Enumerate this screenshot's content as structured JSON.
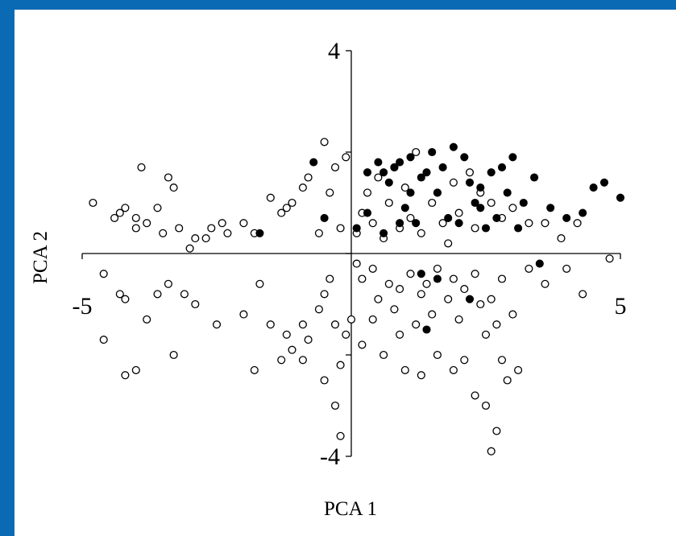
{
  "chart_data": {
    "type": "scatter",
    "title": "",
    "xlabel": "PCA 1",
    "ylabel": "PCA 2",
    "xlim": [
      -5,
      5
    ],
    "ylim": [
      -4,
      4
    ],
    "x_tick_labels": [
      "-5",
      "5"
    ],
    "y_tick_labels": [
      "4",
      "-4"
    ],
    "grid": false,
    "legend": "none",
    "colors": {
      "background": "#0a6ab4",
      "panel": "#ffffff",
      "ink": "#000000"
    },
    "series": [
      {
        "marker": "open-circle",
        "points": [
          [
            -4.8,
            1.0
          ],
          [
            -4.4,
            0.7
          ],
          [
            -4.3,
            0.8
          ],
          [
            -4.2,
            0.9
          ],
          [
            -4.0,
            0.7
          ],
          [
            -3.9,
            1.7
          ],
          [
            -4.0,
            0.5
          ],
          [
            -3.8,
            0.6
          ],
          [
            -3.6,
            0.9
          ],
          [
            -3.4,
            1.5
          ],
          [
            -3.3,
            1.3
          ],
          [
            -3.5,
            0.4
          ],
          [
            -3.2,
            0.5
          ],
          [
            -3.0,
            0.1
          ],
          [
            -2.9,
            0.3
          ],
          [
            -2.7,
            0.3
          ],
          [
            -2.6,
            0.5
          ],
          [
            -2.4,
            0.6
          ],
          [
            -2.3,
            0.4
          ],
          [
            -4.6,
            -0.4
          ],
          [
            -4.3,
            -0.8
          ],
          [
            -4.2,
            -0.9
          ],
          [
            -3.8,
            -1.3
          ],
          [
            -3.6,
            -0.8
          ],
          [
            -3.4,
            -0.6
          ],
          [
            -3.1,
            -0.8
          ],
          [
            -2.9,
            -1.0
          ],
          [
            -4.6,
            -1.7
          ],
          [
            -4.2,
            -2.4
          ],
          [
            -4.0,
            -2.3
          ],
          [
            -3.3,
            -2.0
          ],
          [
            -2.0,
            0.6
          ],
          [
            -1.8,
            0.4
          ],
          [
            -1.5,
            1.1
          ],
          [
            -1.3,
            0.8
          ],
          [
            -1.2,
            0.9
          ],
          [
            -1.1,
            1.0
          ],
          [
            -0.9,
            1.3
          ],
          [
            -0.8,
            1.5
          ],
          [
            -0.6,
            0.4
          ],
          [
            -0.5,
            2.2
          ],
          [
            -0.4,
            1.2
          ],
          [
            -0.3,
            1.7
          ],
          [
            -0.2,
            0.5
          ],
          [
            -0.1,
            1.9
          ],
          [
            -2.5,
            -1.4
          ],
          [
            -2.0,
            -1.2
          ],
          [
            -1.7,
            -0.6
          ],
          [
            -1.5,
            -1.4
          ],
          [
            -1.2,
            -1.6
          ],
          [
            -1.1,
            -1.9
          ],
          [
            -0.9,
            -1.4
          ],
          [
            -0.8,
            -1.7
          ],
          [
            -0.6,
            -1.1
          ],
          [
            -0.5,
            -0.8
          ],
          [
            -0.4,
            -0.5
          ],
          [
            -0.3,
            -1.4
          ],
          [
            -0.2,
            -2.2
          ],
          [
            -0.1,
            -1.6
          ],
          [
            0.0,
            -1.3
          ],
          [
            -1.8,
            -2.3
          ],
          [
            -1.3,
            -2.1
          ],
          [
            -0.9,
            -2.1
          ],
          [
            -0.5,
            -2.5
          ],
          [
            -0.3,
            -3.0
          ],
          [
            -0.2,
            -3.6
          ],
          [
            0.1,
            0.4
          ],
          [
            0.2,
            0.8
          ],
          [
            0.3,
            1.2
          ],
          [
            0.4,
            0.6
          ],
          [
            0.5,
            1.5
          ],
          [
            0.6,
            0.3
          ],
          [
            0.7,
            1.0
          ],
          [
            0.8,
            1.7
          ],
          [
            0.9,
            0.5
          ],
          [
            1.0,
            1.3
          ],
          [
            1.1,
            0.7
          ],
          [
            1.2,
            2.0
          ],
          [
            1.3,
            0.4
          ],
          [
            1.5,
            1.0
          ],
          [
            1.6,
            1.2
          ],
          [
            1.7,
            0.6
          ],
          [
            1.8,
            0.2
          ],
          [
            1.9,
            1.4
          ],
          [
            2.0,
            0.8
          ],
          [
            2.2,
            1.6
          ],
          [
            2.3,
            0.5
          ],
          [
            2.4,
            1.2
          ],
          [
            2.6,
            1.0
          ],
          [
            2.8,
            0.7
          ],
          [
            3.0,
            0.9
          ],
          [
            3.3,
            0.6
          ],
          [
            3.6,
            0.6
          ],
          [
            3.9,
            0.3
          ],
          [
            4.2,
            0.6
          ],
          [
            4.8,
            -0.1
          ],
          [
            0.1,
            -0.2
          ],
          [
            0.2,
            -0.5
          ],
          [
            0.4,
            -0.3
          ],
          [
            0.5,
            -0.9
          ],
          [
            0.7,
            -0.6
          ],
          [
            0.8,
            -1.1
          ],
          [
            0.9,
            -0.7
          ],
          [
            1.1,
            -0.4
          ],
          [
            1.2,
            -1.4
          ],
          [
            1.3,
            -0.8
          ],
          [
            1.4,
            -0.6
          ],
          [
            1.5,
            -1.2
          ],
          [
            1.6,
            -0.3
          ],
          [
            1.8,
            -0.9
          ],
          [
            1.9,
            -0.5
          ],
          [
            2.0,
            -1.3
          ],
          [
            2.1,
            -0.7
          ],
          [
            2.3,
            -0.4
          ],
          [
            2.4,
            -1.0
          ],
          [
            2.5,
            -1.6
          ],
          [
            2.6,
            -0.9
          ],
          [
            2.7,
            -1.4
          ],
          [
            2.8,
            -0.5
          ],
          [
            3.0,
            -1.2
          ],
          [
            3.3,
            -0.3
          ],
          [
            3.6,
            -0.6
          ],
          [
            4.0,
            -0.3
          ],
          [
            4.3,
            -0.8
          ],
          [
            0.2,
            -1.8
          ],
          [
            0.4,
            -1.3
          ],
          [
            0.6,
            -2.0
          ],
          [
            0.9,
            -1.6
          ],
          [
            1.0,
            -2.3
          ],
          [
            1.3,
            -2.4
          ],
          [
            1.6,
            -2.0
          ],
          [
            1.9,
            -2.3
          ],
          [
            2.1,
            -2.1
          ],
          [
            2.3,
            -2.8
          ],
          [
            2.5,
            -3.0
          ],
          [
            2.7,
            -3.5
          ],
          [
            2.9,
            -2.5
          ],
          [
            3.1,
            -2.3
          ],
          [
            2.6,
            -3.9
          ],
          [
            2.8,
            -2.1
          ]
        ]
      },
      {
        "marker": "filled-circle",
        "points": [
          [
            -1.7,
            0.4
          ],
          [
            -0.7,
            1.8
          ],
          [
            -0.5,
            0.7
          ],
          [
            0.1,
            0.5
          ],
          [
            0.3,
            0.8
          ],
          [
            0.5,
            1.8
          ],
          [
            0.6,
            1.6
          ],
          [
            0.7,
            1.4
          ],
          [
            0.8,
            1.7
          ],
          [
            0.9,
            1.8
          ],
          [
            1.0,
            0.9
          ],
          [
            1.1,
            1.2
          ],
          [
            1.2,
            0.6
          ],
          [
            1.3,
            1.5
          ],
          [
            1.4,
            1.6
          ],
          [
            1.5,
            2.0
          ],
          [
            1.6,
            1.2
          ],
          [
            1.7,
            1.7
          ],
          [
            1.8,
            0.7
          ],
          [
            1.9,
            2.1
          ],
          [
            2.0,
            0.6
          ],
          [
            2.1,
            1.9
          ],
          [
            2.2,
            1.4
          ],
          [
            2.3,
            1.0
          ],
          [
            2.4,
            1.3
          ],
          [
            2.5,
            0.5
          ],
          [
            2.6,
            1.6
          ],
          [
            2.7,
            0.7
          ],
          [
            2.8,
            1.7
          ],
          [
            2.9,
            1.2
          ],
          [
            3.0,
            1.9
          ],
          [
            3.1,
            0.5
          ],
          [
            3.2,
            1.0
          ],
          [
            3.4,
            1.5
          ],
          [
            3.7,
            0.9
          ],
          [
            4.0,
            0.7
          ],
          [
            4.3,
            0.8
          ],
          [
            4.5,
            1.3
          ],
          [
            4.7,
            1.4
          ],
          [
            5.0,
            1.1
          ],
          [
            0.3,
            1.6
          ],
          [
            0.6,
            0.4
          ],
          [
            0.9,
            0.6
          ],
          [
            1.1,
            1.9
          ],
          [
            1.3,
            -0.4
          ],
          [
            1.6,
            -0.5
          ],
          [
            2.2,
            -0.9
          ],
          [
            3.5,
            -0.2
          ],
          [
            1.4,
            -1.5
          ],
          [
            2.4,
            0.9
          ]
        ]
      }
    ]
  }
}
